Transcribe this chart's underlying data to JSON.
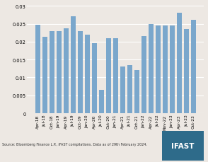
{
  "categories": [
    "Apr-18",
    "Jul-18",
    "Oct-18",
    "Jan-19",
    "Apr-19",
    "Jul-19",
    "Oct-19",
    "Jan-20",
    "Apr-20",
    "Jul-20",
    "Oct-20",
    "Jan-21",
    "Apr-21",
    "Jul-21",
    "Oct-21",
    "Jan-22",
    "Apr-22",
    "Jul-22",
    "Nov-22",
    "Jan-23",
    "Apr-23",
    "Jul-23",
    "Oct-23"
  ],
  "values": [
    0.0248,
    0.0213,
    0.023,
    0.023,
    0.0238,
    0.027,
    0.023,
    0.022,
    0.0195,
    0.0065,
    0.021,
    0.021,
    0.013,
    0.0135,
    0.012,
    0.0215,
    0.025,
    0.0245,
    0.0245,
    0.0245,
    0.028,
    0.0235,
    0.026
  ],
  "bar_color": "#7aa7cc",
  "ylim": [
    0,
    0.03
  ],
  "yticks": [
    0,
    0.005,
    0.01,
    0.015,
    0.02,
    0.025,
    0.03
  ],
  "source_text": "Source: Bloomberg Finance L.P., iFAST compilations. Data as of 29th February 2024.",
  "ifast_box_color": "#2e6b8a",
  "ifast_text": "IFAST",
  "bg_color": "#ede8e3",
  "grid_color": "#ffffff"
}
